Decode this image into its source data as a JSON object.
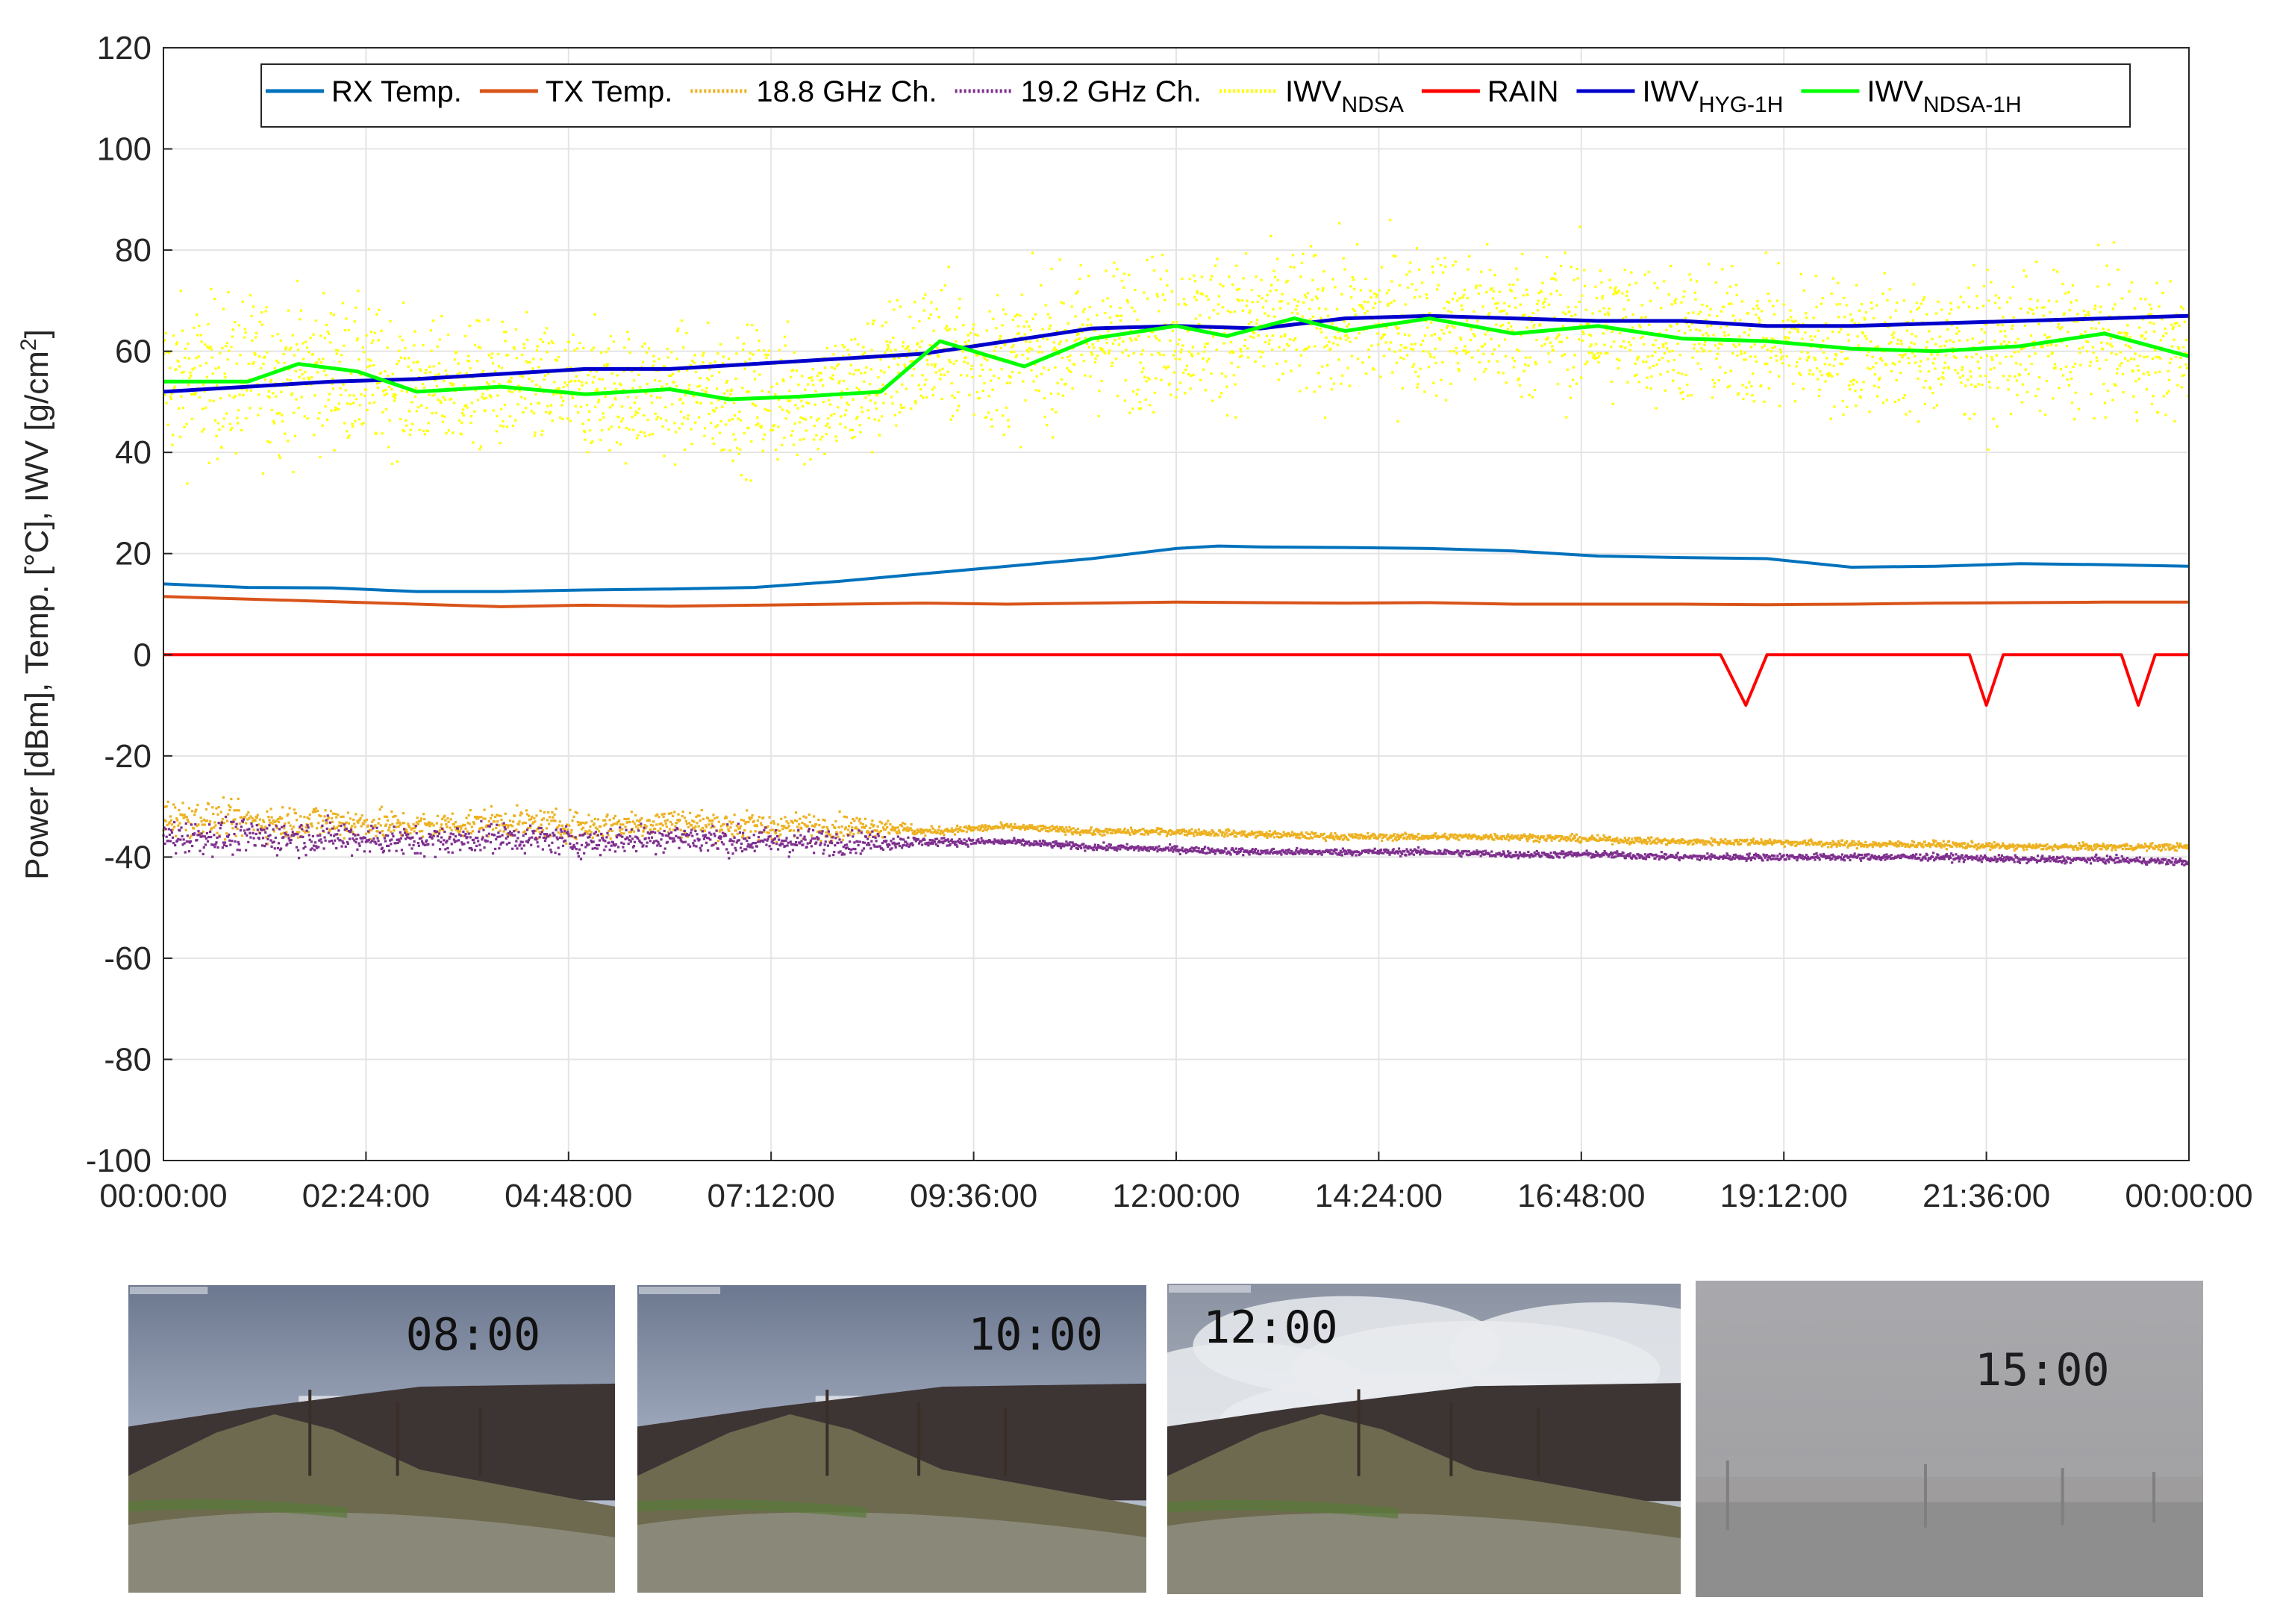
{
  "chart_data": {
    "type": "line",
    "title": "",
    "xlabel": "",
    "ylabel": "Power [dBm], Temp. [°C], IWV [g/cm²]",
    "ylabel_parts": {
      "main": "Power [dBm], Temp. [°C], IWV [g/cm",
      "sup": "2",
      "close": "]"
    },
    "x_unit": "hours",
    "xlim": [
      0,
      24
    ],
    "ylim": [
      -100,
      120
    ],
    "grid": true,
    "legend_position": "top",
    "x_ticks": [
      0,
      2.4,
      4.8,
      7.2,
      9.6,
      12,
      14.4,
      16.8,
      19.2,
      21.6,
      24
    ],
    "x_tick_labels": [
      "00:00:00",
      "02:24:00",
      "04:48:00",
      "07:12:00",
      "09:36:00",
      "12:00:00",
      "14:24:00",
      "16:48:00",
      "19:12:00",
      "21:36:00",
      "00:00:00"
    ],
    "y_ticks": [
      -100,
      -80,
      -60,
      -40,
      -20,
      0,
      20,
      40,
      60,
      80,
      100,
      120
    ],
    "y_tick_labels": [
      "-100",
      "-80",
      "-60",
      "-40",
      "-20",
      "0",
      "20",
      "40",
      "60",
      "80",
      "100",
      "120"
    ],
    "legend": [
      {
        "name": "RX Temp.",
        "sub": "",
        "color": "#0072BD",
        "style": "solid"
      },
      {
        "name": "TX Temp.",
        "sub": "",
        "color": "#D95319",
        "style": "solid"
      },
      {
        "name": "18.8 GHz Ch.",
        "sub": "",
        "color": "#EDB120",
        "style": "dotted"
      },
      {
        "name": "19.2 GHz Ch.",
        "sub": "",
        "color": "#7E2F8E",
        "style": "dotted"
      },
      {
        "name": "IWV",
        "sub": "NDSA",
        "color": "#FFFF00",
        "style": "dotted"
      },
      {
        "name": "RAIN",
        "sub": "",
        "color": "#FF0000",
        "style": "solid"
      },
      {
        "name": "IWV",
        "sub": "HYG-1H",
        "color": "#0000CC",
        "style": "solid"
      },
      {
        "name": "IWV",
        "sub": "NDSA-1H",
        "color": "#00FF00",
        "style": "solid"
      }
    ],
    "series": [
      {
        "name": "RX Temp.",
        "kind": "line",
        "color": "#0072BD",
        "x": [
          0,
          1,
          2,
          3,
          4,
          5,
          6,
          7,
          8,
          9,
          10,
          11,
          12,
          12.5,
          13,
          14,
          15,
          16,
          17,
          18,
          19,
          20,
          21,
          22,
          23,
          24
        ],
        "y": [
          14,
          13.3,
          13.2,
          12.5,
          12.5,
          12.8,
          13,
          13.3,
          14.5,
          16,
          17.5,
          19,
          21,
          21.5,
          21.3,
          21.2,
          21,
          20.5,
          19.5,
          19.2,
          19,
          17.3,
          17.5,
          18,
          17.8,
          17.5
        ]
      },
      {
        "name": "TX Temp.",
        "kind": "line",
        "color": "#D95319",
        "x": [
          0,
          1,
          2,
          3,
          4,
          5,
          6,
          7,
          8,
          9,
          10,
          11,
          12,
          13,
          14,
          15,
          16,
          17,
          18,
          19,
          20,
          21,
          22,
          23,
          24
        ],
        "y": [
          11.5,
          11,
          10.5,
          10,
          9.5,
          9.8,
          9.6,
          9.8,
          10,
          10.2,
          10,
          10.2,
          10.4,
          10.3,
          10.2,
          10.3,
          10,
          10,
          10,
          9.9,
          10,
          10.2,
          10.3,
          10.4,
          10.4
        ]
      },
      {
        "name": "RAIN",
        "kind": "line",
        "color": "#FF0000",
        "x": [
          0,
          18.45,
          18.75,
          19.0,
          21.4,
          21.6,
          21.8,
          23.2,
          23.4,
          23.6,
          24
        ],
        "y": [
          0,
          0,
          -10,
          0,
          0,
          -10,
          0,
          0,
          -10,
          0,
          0
        ]
      },
      {
        "name": "IWV HYG-1H",
        "kind": "line",
        "color": "#0000CC",
        "x": [
          0,
          1,
          2,
          3,
          4,
          5,
          6,
          7,
          8,
          9,
          10,
          11,
          12,
          13,
          14,
          15,
          16,
          17,
          18,
          19,
          20,
          21,
          22,
          23,
          24
        ],
        "y": [
          52,
          53,
          54,
          54.5,
          55.5,
          56.5,
          56.5,
          57.5,
          58.5,
          59.5,
          62,
          64.5,
          65,
          64.5,
          66.5,
          67,
          66.5,
          66,
          66,
          65,
          65,
          65.5,
          66,
          66.5,
          67
        ]
      },
      {
        "name": "IWV NDSA-1H",
        "kind": "line",
        "color": "#00FF00",
        "x": [
          0,
          1,
          1.6,
          2.3,
          3,
          4,
          5,
          6,
          6.7,
          7.5,
          8.5,
          9.2,
          10.2,
          11,
          12,
          12.6,
          13.4,
          14,
          15,
          16,
          17,
          18,
          19,
          20,
          21,
          22,
          23,
          24
        ],
        "y": [
          54,
          54,
          57.5,
          56,
          52,
          53,
          51.5,
          52.5,
          50.5,
          51,
          52,
          62,
          57,
          62.5,
          65,
          63,
          66.5,
          64,
          66.5,
          63.5,
          65,
          62.5,
          62,
          60.5,
          60,
          61,
          63.5,
          59
        ]
      },
      {
        "name": "IWV NDSA",
        "kind": "scatter",
        "color": "#FFFF00",
        "x": [
          0,
          1,
          2,
          3,
          4,
          5,
          6,
          7,
          8,
          8.5,
          9,
          10,
          11,
          12,
          13,
          14,
          15,
          16,
          17,
          18,
          19,
          20,
          21,
          22,
          23,
          24
        ],
        "y": [
          54,
          55,
          56,
          53,
          53,
          52,
          52,
          51,
          51,
          55,
          60,
          58,
          63,
          64,
          65,
          65,
          66,
          65,
          65,
          63,
          62,
          61,
          60,
          61,
          62,
          59
        ],
        "spread": [
          28,
          28,
          26,
          22,
          22,
          22,
          22,
          24,
          24,
          26,
          24,
          24,
          26,
          26,
          26,
          26,
          26,
          26,
          26,
          24,
          24,
          24,
          24,
          24,
          24,
          24
        ]
      },
      {
        "name": "18.8 GHz Ch.",
        "kind": "scatter",
        "color": "#EDB120",
        "x": [
          0,
          1,
          2,
          3,
          4,
          5,
          6,
          7,
          8,
          8.6,
          9,
          10,
          11,
          12,
          13,
          14,
          15,
          16,
          17,
          18,
          19,
          20,
          21,
          22,
          23,
          24
        ],
        "y": [
          -32,
          -33,
          -33,
          -34,
          -33,
          -34,
          -33,
          -34,
          -34,
          -34,
          -35,
          -34,
          -35,
          -35,
          -35.5,
          -36,
          -36,
          -36,
          -36.5,
          -37,
          -37,
          -37.5,
          -37.5,
          -38,
          -38,
          -38
        ],
        "spread": [
          6,
          6,
          6,
          5,
          5,
          5,
          5,
          5,
          4.5,
          3,
          1.5,
          1.2,
          1.2,
          1.2,
          1.2,
          1.2,
          1.2,
          1.2,
          1.2,
          1.2,
          1.2,
          1.2,
          1.2,
          1.2,
          1.2,
          1.2
        ]
      },
      {
        "name": "19.2 GHz Ch.",
        "kind": "scatter",
        "color": "#7E2F8E",
        "x": [
          0,
          1,
          2,
          3,
          4,
          5,
          6,
          7,
          8,
          8.6,
          9,
          10,
          11,
          12,
          13,
          14,
          15,
          16,
          17,
          18,
          19,
          20,
          21,
          22,
          23,
          24
        ],
        "y": [
          -36,
          -36,
          -36,
          -37,
          -36,
          -37,
          -36,
          -37,
          -37,
          -37,
          -37,
          -37,
          -38,
          -38.5,
          -39,
          -39,
          -39,
          -39.5,
          -39.5,
          -40,
          -40,
          -40,
          -40,
          -40.5,
          -40.5,
          -41
        ],
        "spread": [
          6,
          6,
          6,
          5,
          5,
          5,
          5,
          5,
          4.5,
          3,
          1.5,
          1.2,
          1.2,
          1.2,
          1.2,
          1.2,
          1.2,
          1.2,
          1.2,
          1.2,
          1.2,
          1.2,
          1.2,
          1.2,
          1.2,
          1.2
        ]
      }
    ]
  },
  "photos": [
    {
      "label": "08:00",
      "scene": "clear"
    },
    {
      "label": "10:00",
      "scene": "clear"
    },
    {
      "label": "12:00",
      "scene": "cloudy"
    },
    {
      "label": "15:00",
      "scene": "fog"
    }
  ]
}
